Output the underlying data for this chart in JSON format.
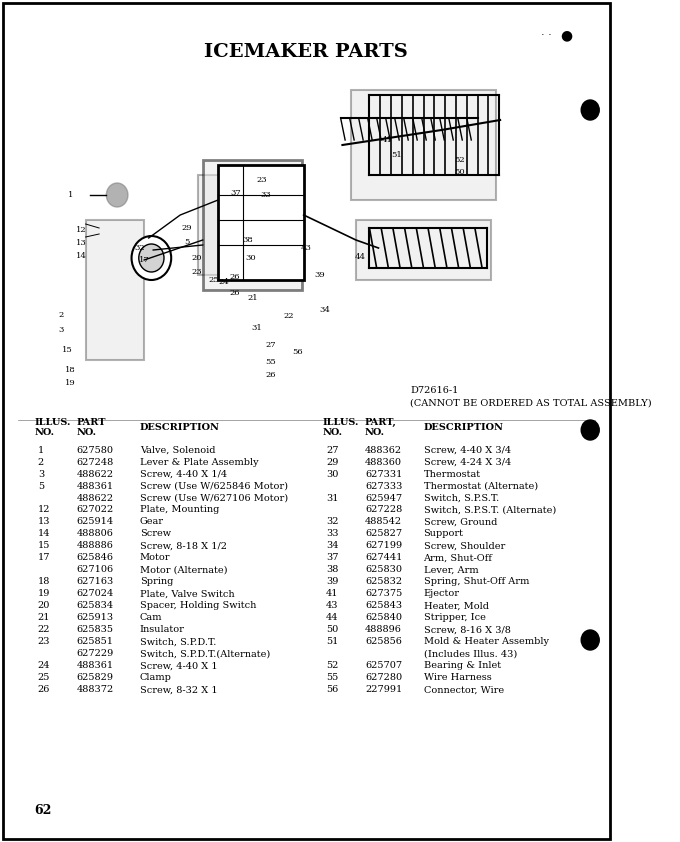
{
  "title": "ICEMAKER PARTS",
  "title_fontsize": 14,
  "title_bold": true,
  "diagram_note_line1": "D72616-1",
  "diagram_note_line2": "(CANNOT BE ORDERED AS TOTAL ASSEMBLY)",
  "page_number": "62",
  "col1_header": [
    "ILLUS.",
    "NO.",
    "PART",
    "NO.",
    "DESCRIPTION"
  ],
  "col2_header": [
    "ILLUS.",
    "NO.",
    "PART,",
    "NO.",
    "DESCRIPTION"
  ],
  "parts_left": [
    [
      "1",
      "627580",
      "Valve, Solenoid"
    ],
    [
      "2",
      "627248",
      "Lever & Plate Assembly"
    ],
    [
      "3",
      "488622",
      "Screw, 4-40 X 1/4"
    ],
    [
      "5",
      "488361",
      "Screw (Use W/625846 Motor)"
    ],
    [
      "",
      "488622",
      "Screw (Use W/627106 Motor)"
    ],
    [
      "12",
      "627022",
      "Plate, Mounting"
    ],
    [
      "13",
      "625914",
      "Gear"
    ],
    [
      "14",
      "488806",
      "Screw"
    ],
    [
      "15",
      "488886",
      "Screw, 8-18 X 1/2"
    ],
    [
      "17",
      "625846",
      "Motor"
    ],
    [
      "",
      "627106",
      "Motor (Alternate)"
    ],
    [
      "18",
      "627163",
      "Spring"
    ],
    [
      "19",
      "627024",
      "Plate, Valve Switch"
    ],
    [
      "20",
      "625834",
      "Spacer, Holding Switch"
    ],
    [
      "21",
      "625913",
      "Cam"
    ],
    [
      "22",
      "625835",
      "Insulator"
    ],
    [
      "23",
      "625851",
      "Switch, S.P.D.T."
    ],
    [
      "",
      "627229",
      "Switch, S.P.D.T.(Alternate)"
    ],
    [
      "24",
      "488361",
      "Screw, 4-40 X 1"
    ],
    [
      "25",
      "625829",
      "Clamp"
    ],
    [
      "26",
      "488372",
      "Screw, 8-32 X 1"
    ]
  ],
  "parts_right": [
    [
      "27",
      "488362",
      "Screw, 4-40 X 3/4"
    ],
    [
      "29",
      "488360",
      "Screw, 4-24 X 3/4"
    ],
    [
      "30",
      "627331",
      "Thermostat"
    ],
    [
      "",
      "627333",
      "Thermostat (Alternate)"
    ],
    [
      "31",
      "625947",
      "Switch, S.P.S.T."
    ],
    [
      "",
      "627228",
      "Switch, S.P.S.T. (Alternate)"
    ],
    [
      "32",
      "488542",
      "Screw, Ground"
    ],
    [
      "33",
      "625827",
      "Support"
    ],
    [
      "34",
      "627199",
      "Screw, Shoulder"
    ],
    [
      "37",
      "627441",
      "Arm, Shut-Off"
    ],
    [
      "38",
      "625830",
      "Lever, Arm"
    ],
    [
      "39",
      "625832",
      "Spring, Shut-Off Arm"
    ],
    [
      "41",
      "627375",
      "Ejector"
    ],
    [
      "43",
      "625843",
      "Heater, Mold"
    ],
    [
      "44",
      "625840",
      "Stripper, Ice"
    ],
    [
      "50",
      "488896",
      "Screw, 8-16 X 3/8"
    ],
    [
      "51",
      "625856",
      "Mold & Heater Assembly"
    ],
    [
      "",
      "",
      "(Includes Illus. 43)"
    ],
    [
      "52",
      "625707",
      "Bearing & Inlet"
    ],
    [
      "55",
      "627280",
      "Wire Harness"
    ],
    [
      "56",
      "227991",
      "Connector, Wire"
    ]
  ],
  "background_color": "#ffffff",
  "text_color": "#000000",
  "border_color": "#000000",
  "dots_color": "#000000"
}
